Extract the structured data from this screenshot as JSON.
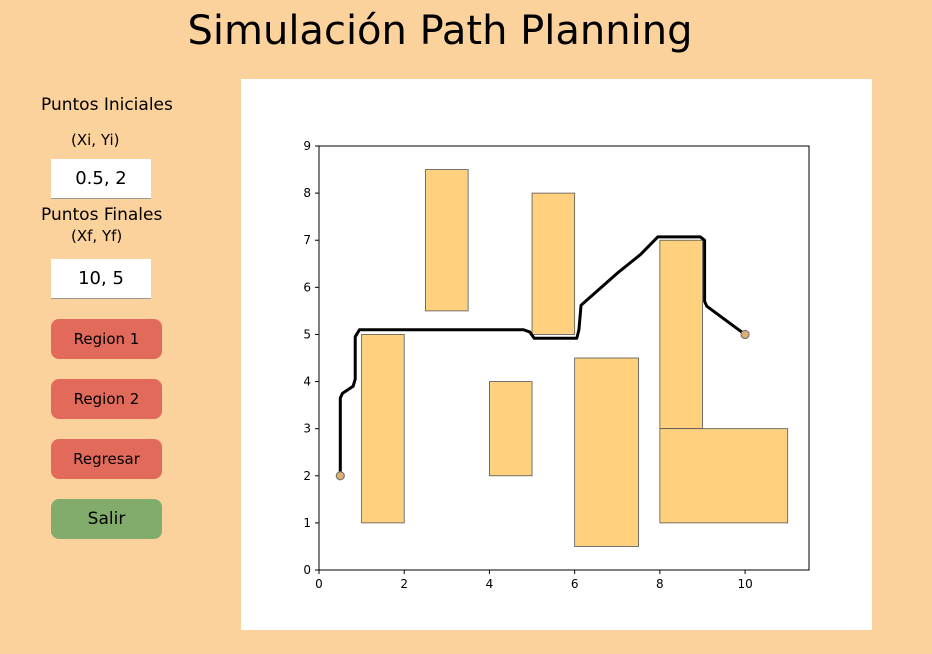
{
  "title": "Simulación Path Planning",
  "sidebar": {
    "start_label": "Puntos Iniciales",
    "start_sub": "(Xi, Yi)",
    "start_value": "0.5, 2",
    "end_label": "Puntos Finales",
    "end_sub": "(Xf, Yf)",
    "end_value": "10, 5",
    "buttons": {
      "region1": "Region 1",
      "region2": "Region 2",
      "back": "Regresar",
      "exit": "Salir"
    }
  },
  "colors": {
    "background": "#fcd29c",
    "obstacle_fill": "#ffd17f",
    "button_red": "#e26a5a",
    "button_green": "#82ac6c",
    "path": "#000000"
  },
  "chart_data": {
    "type": "line",
    "title": "",
    "xlabel": "",
    "ylabel": "",
    "xlim": [
      0,
      11.5
    ],
    "ylim": [
      0,
      9
    ],
    "xticks": [
      "0",
      "2",
      "4",
      "6",
      "8",
      "10"
    ],
    "yticks": [
      "0",
      "1",
      "2",
      "3",
      "4",
      "5",
      "6",
      "7",
      "8",
      "9"
    ],
    "grid": false,
    "obstacles": [
      {
        "x0": 1.0,
        "x1": 2.0,
        "y0": 1.0,
        "y1": 5.0
      },
      {
        "x0": 2.5,
        "x1": 3.5,
        "y0": 5.5,
        "y1": 8.5
      },
      {
        "x0": 4.0,
        "x1": 5.0,
        "y0": 2.0,
        "y1": 4.0
      },
      {
        "x0": 5.0,
        "x1": 6.0,
        "y0": 5.0,
        "y1": 8.0
      },
      {
        "x0": 6.0,
        "x1": 7.5,
        "y0": 0.5,
        "y1": 4.5
      },
      {
        "x0": 8.0,
        "x1": 9.0,
        "y0": 3.0,
        "y1": 7.0
      },
      {
        "x0": 8.0,
        "x1": 11.0,
        "y0": 1.0,
        "y1": 3.0
      }
    ],
    "path": {
      "x": [
        0.5,
        0.5,
        0.55,
        0.8,
        0.85,
        0.85,
        0.95,
        4.8,
        4.95,
        5.05,
        6.05,
        6.1,
        6.15,
        7.0,
        7.55,
        7.95,
        8.95,
        9.05,
        9.05,
        9.1,
        9.7,
        10.0
      ],
      "y": [
        2.0,
        3.65,
        3.75,
        3.9,
        4.05,
        4.95,
        5.1,
        5.1,
        5.05,
        4.92,
        4.92,
        5.1,
        5.62,
        6.3,
        6.7,
        7.07,
        7.07,
        7.0,
        5.7,
        5.6,
        5.2,
        5.0
      ]
    },
    "start": {
      "x": 0.5,
      "y": 2
    },
    "goal": {
      "x": 10,
      "y": 5
    }
  }
}
